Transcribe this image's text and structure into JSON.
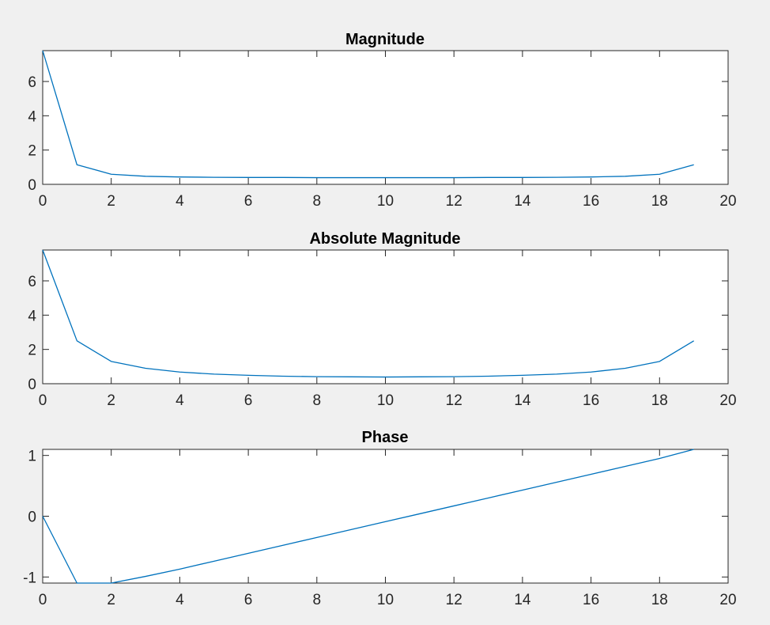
{
  "chart_data": [
    {
      "type": "line",
      "title": "Magnitude",
      "xlabel": "",
      "ylabel": "",
      "xlim": [
        0,
        20
      ],
      "ylim": [
        0,
        7.8
      ],
      "xticks": [
        0,
        2,
        4,
        6,
        8,
        10,
        12,
        14,
        16,
        18,
        20
      ],
      "yticks": [
        0,
        2,
        4,
        6
      ],
      "grid": false,
      "x": [
        0,
        1,
        2,
        3,
        4,
        5,
        6,
        7,
        8,
        9,
        10,
        11,
        12,
        13,
        14,
        15,
        16,
        17,
        18,
        19
      ],
      "series": [
        {
          "values": [
            7.8,
            1.14,
            0.59,
            0.47,
            0.43,
            0.41,
            0.4,
            0.4,
            0.39,
            0.39,
            0.39,
            0.39,
            0.39,
            0.4,
            0.4,
            0.41,
            0.43,
            0.47,
            0.59,
            1.14
          ]
        }
      ]
    },
    {
      "type": "line",
      "title": "Absolute Magnitude",
      "xlabel": "",
      "ylabel": "",
      "xlim": [
        0,
        20
      ],
      "ylim": [
        0,
        7.8
      ],
      "xticks": [
        0,
        2,
        4,
        6,
        8,
        10,
        12,
        14,
        16,
        18,
        20
      ],
      "yticks": [
        0,
        2,
        4,
        6
      ],
      "grid": false,
      "x": [
        0,
        1,
        2,
        3,
        4,
        5,
        6,
        7,
        8,
        9,
        10,
        11,
        12,
        13,
        14,
        15,
        16,
        17,
        18,
        19
      ],
      "series": [
        {
          "values": [
            7.8,
            2.5,
            1.3,
            0.9,
            0.68,
            0.56,
            0.49,
            0.44,
            0.41,
            0.4,
            0.39,
            0.4,
            0.41,
            0.44,
            0.49,
            0.56,
            0.68,
            0.9,
            1.3,
            2.5
          ]
        }
      ]
    },
    {
      "type": "line",
      "title": "Phase",
      "xlabel": "",
      "ylabel": "",
      "xlim": [
        0,
        20
      ],
      "ylim": [
        -1.1,
        1.1
      ],
      "xticks": [
        0,
        2,
        4,
        6,
        8,
        10,
        12,
        14,
        16,
        18,
        20
      ],
      "yticks": [
        -1,
        0,
        1
      ],
      "grid": false,
      "x": [
        0,
        1,
        2,
        3,
        4,
        5,
        6,
        7,
        8,
        9,
        10,
        11,
        12,
        13,
        14,
        15,
        16,
        17,
        18,
        19
      ],
      "series": [
        {
          "values": [
            0,
            -1.1,
            -1.1,
            -0.99,
            -0.87,
            -0.74,
            -0.61,
            -0.48,
            -0.35,
            -0.22,
            -0.09,
            0.04,
            0.17,
            0.3,
            0.43,
            0.56,
            0.69,
            0.82,
            0.95,
            1.1
          ]
        }
      ]
    }
  ],
  "style": {
    "figure_background": "#f0f0f0",
    "axes_background": "#ffffff",
    "axes_color": "#262626",
    "line_color": "#0072bd"
  }
}
